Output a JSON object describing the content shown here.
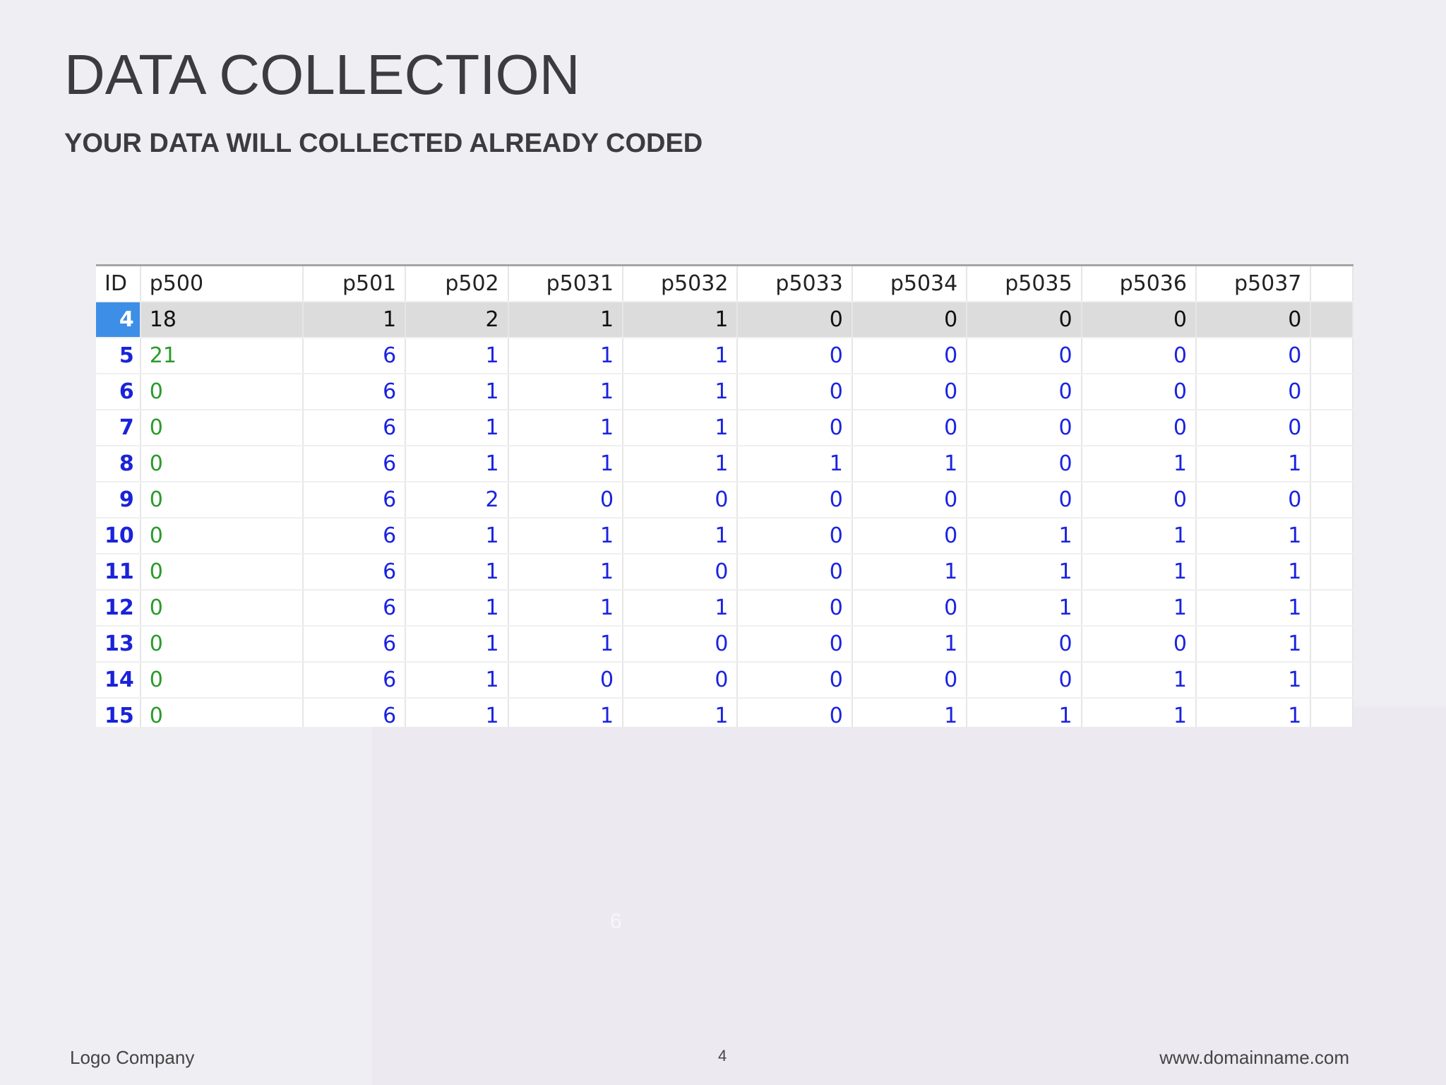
{
  "slide": {
    "title": "DATA COLLECTION",
    "subtitle": "YOUR DATA WILL COLLECTED ALREADY CODED",
    "ghost_text": "6",
    "footer": {
      "company": "Logo Company",
      "page": "4",
      "website": "www.domainname.com"
    }
  },
  "table": {
    "headers": [
      "ID",
      "p500",
      "p501",
      "p502",
      "p5031",
      "p5032",
      "p5033",
      "p5034",
      "p5035",
      "p5036",
      "p5037"
    ],
    "rows": [
      [
        "4",
        "18",
        "1",
        "2",
        "1",
        "1",
        "0",
        "0",
        "0",
        "0",
        "0"
      ],
      [
        "5",
        "21",
        "6",
        "1",
        "1",
        "1",
        "0",
        "0",
        "0",
        "0",
        "0"
      ],
      [
        "6",
        "0",
        "6",
        "1",
        "1",
        "1",
        "0",
        "0",
        "0",
        "0",
        "0"
      ],
      [
        "7",
        "0",
        "6",
        "1",
        "1",
        "1",
        "0",
        "0",
        "0",
        "0",
        "0"
      ],
      [
        "8",
        "0",
        "6",
        "1",
        "1",
        "1",
        "1",
        "1",
        "0",
        "1",
        "1"
      ],
      [
        "9",
        "0",
        "6",
        "2",
        "0",
        "0",
        "0",
        "0",
        "0",
        "0",
        "0"
      ],
      [
        "10",
        "0",
        "6",
        "1",
        "1",
        "1",
        "0",
        "0",
        "1",
        "1",
        "1"
      ],
      [
        "11",
        "0",
        "6",
        "1",
        "1",
        "0",
        "0",
        "1",
        "1",
        "1",
        "1"
      ],
      [
        "12",
        "0",
        "6",
        "1",
        "1",
        "1",
        "0",
        "0",
        "1",
        "1",
        "1"
      ],
      [
        "13",
        "0",
        "6",
        "1",
        "1",
        "0",
        "0",
        "1",
        "0",
        "0",
        "1"
      ],
      [
        "14",
        "0",
        "6",
        "1",
        "0",
        "0",
        "0",
        "0",
        "0",
        "1",
        "1"
      ],
      [
        "15",
        "0",
        "6",
        "1",
        "1",
        "1",
        "0",
        "1",
        "1",
        "1",
        "1"
      ]
    ],
    "colors": {
      "value_text": "#1a23e0",
      "p500_text": "#2a9a2a",
      "selected_row_bg": "#dcdcdc",
      "selected_id_bg": "#3d8ee6"
    }
  }
}
